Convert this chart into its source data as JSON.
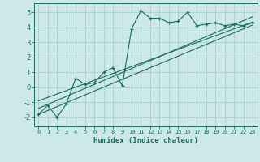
{
  "xlabel": "Humidex (Indice chaleur)",
  "background_color": "#cce8e8",
  "grid_color": "#aacfcf",
  "line_color": "#1a6b5a",
  "xlim": [
    -0.5,
    23.5
  ],
  "ylim": [
    -2.6,
    5.6
  ],
  "xticks": [
    0,
    1,
    2,
    3,
    4,
    5,
    6,
    7,
    8,
    9,
    10,
    11,
    12,
    13,
    14,
    15,
    16,
    17,
    18,
    19,
    20,
    21,
    22,
    23
  ],
  "yticks": [
    -2,
    -1,
    0,
    1,
    2,
    3,
    4,
    5
  ],
  "main_series_x": [
    0,
    1,
    2,
    3,
    4,
    5,
    6,
    7,
    8,
    9,
    10,
    11,
    12,
    13,
    14,
    15,
    16,
    17,
    18,
    19,
    20,
    21,
    22,
    23
  ],
  "main_series_y": [
    -1.8,
    -1.2,
    -2.0,
    -1.1,
    0.6,
    0.2,
    0.3,
    1.0,
    1.3,
    0.1,
    3.9,
    5.1,
    4.6,
    4.6,
    4.3,
    4.4,
    5.0,
    4.1,
    4.2,
    4.3,
    4.1,
    4.2,
    4.1,
    4.3
  ],
  "line1_x": [
    0,
    23
  ],
  "line1_y": [
    -1.8,
    4.15
  ],
  "line2_x": [
    0,
    23
  ],
  "line2_y": [
    -0.9,
    4.35
  ],
  "line3_x": [
    0,
    23
  ],
  "line3_y": [
    -1.4,
    4.7
  ]
}
